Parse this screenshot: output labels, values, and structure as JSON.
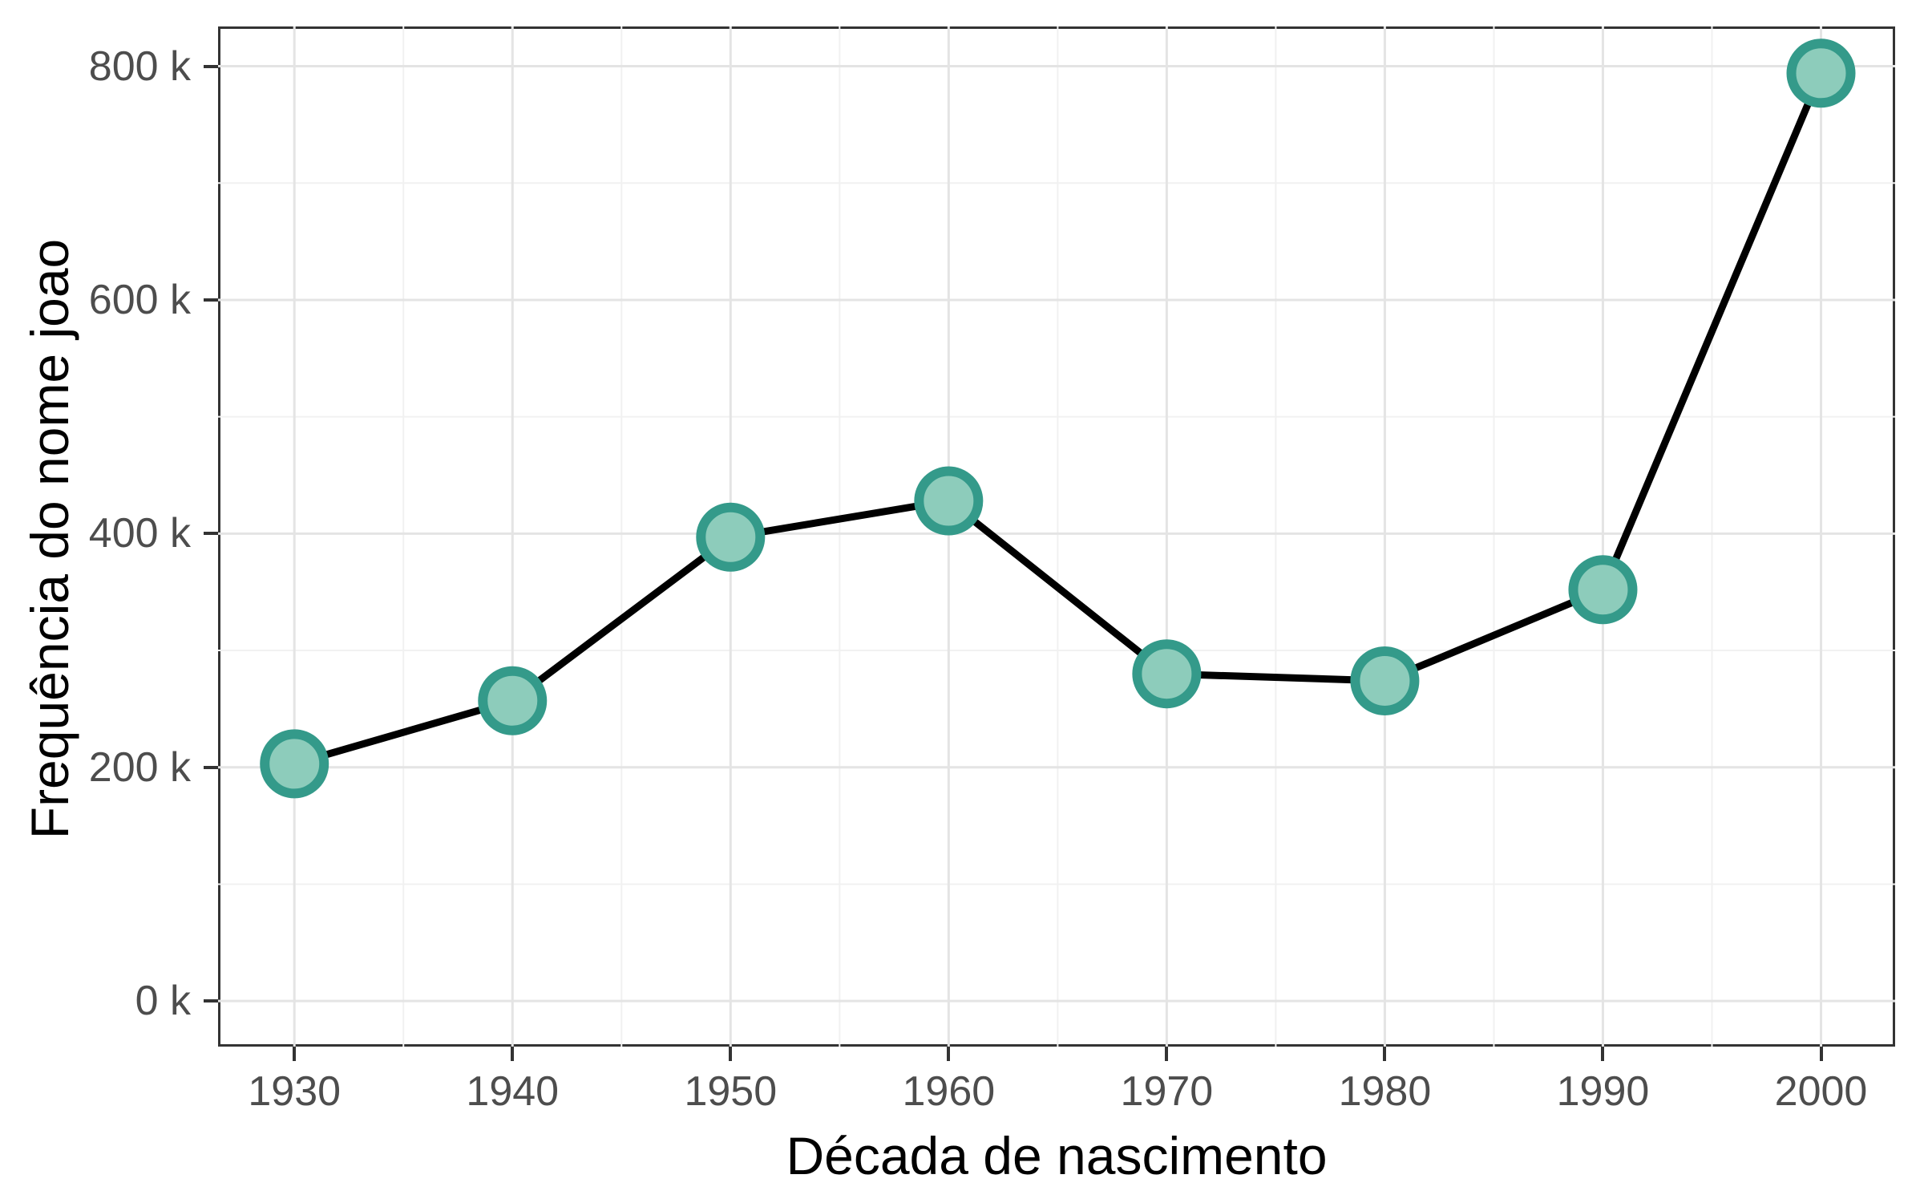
{
  "chart_data": {
    "type": "line",
    "title": "",
    "xlabel": "Década de nascimento",
    "ylabel": "Frequência do nome joao",
    "series": [
      {
        "name": "frequencia-joao",
        "x": [
          1930,
          1940,
          1950,
          1960,
          1970,
          1980,
          1990,
          2000
        ],
        "values_thousands": [
          203,
          257,
          397,
          428,
          280,
          274,
          352,
          794
        ]
      }
    ],
    "y_unit": "k",
    "x_ticks": {
      "values": [
        1930,
        1940,
        1950,
        1960,
        1970,
        1980,
        1990,
        2000
      ],
      "labels": [
        "1930",
        "1940",
        "1950",
        "1960",
        "1970",
        "1980",
        "1990",
        "2000"
      ]
    },
    "y_ticks": {
      "values_thousands": [
        0,
        200,
        400,
        600,
        800
      ],
      "labels": [
        "0 k",
        "200 k",
        "400 k",
        "600 k",
        "800 k"
      ]
    },
    "x_minor_gridlines": [
      1935,
      1945,
      1955,
      1965,
      1975,
      1985,
      1995
    ],
    "y_minor_gridlines_thousands": [
      100,
      300,
      500,
      700
    ],
    "xlim": [
      1926.5,
      2003.4
    ],
    "ylim_thousands": [
      -39,
      834
    ],
    "grid": "major-and-minor",
    "legend": "none",
    "colors": {
      "line": "#000000",
      "point_fill": "#8DCCBB",
      "point_stroke": "#349A8A",
      "grid_major": "#E4E4E4",
      "grid_minor": "#F1F1F1",
      "panel_border": "#333333",
      "tick_mark": "#333333",
      "tick_label": "#4D4D4D",
      "axis_title": "#000000",
      "panel_background": "#FFFFFF"
    }
  }
}
